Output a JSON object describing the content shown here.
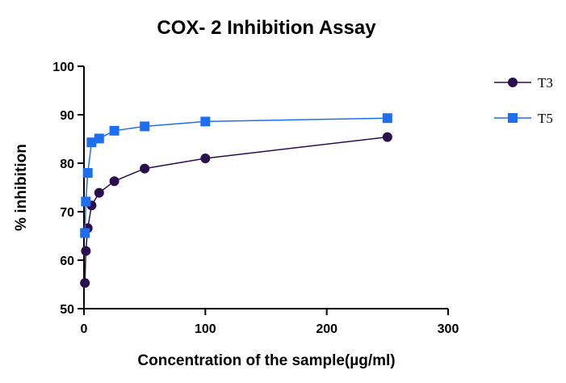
{
  "chart_data": {
    "type": "line",
    "title": "COX- 2 Inhibition Assay",
    "xlabel": "Concentration of the sample(µg/ml)",
    "ylabel": "% inhibition",
    "xlim": [
      0,
      300
    ],
    "ylim": [
      50,
      100
    ],
    "xticks": [
      0,
      100,
      200,
      300
    ],
    "yticks": [
      50,
      60,
      70,
      80,
      90,
      100
    ],
    "grid": false,
    "legend_position": "top-right",
    "series": [
      {
        "name": "T3",
        "marker": "circle",
        "color": "#2a0f4e",
        "x": [
          0.78,
          1.56,
          3.125,
          6.25,
          12.5,
          25,
          50,
          100,
          250
        ],
        "y": [
          55.3,
          61.9,
          66.6,
          71.3,
          73.9,
          76.3,
          78.9,
          81.0,
          85.4
        ]
      },
      {
        "name": "T5",
        "marker": "square",
        "color": "#1e6ff0",
        "x": [
          0.78,
          1.56,
          3.125,
          6.25,
          12.5,
          25,
          50,
          100,
          250
        ],
        "y": [
          65.6,
          72.1,
          78.0,
          84.3,
          85.1,
          86.7,
          87.6,
          88.6,
          89.3
        ]
      }
    ]
  }
}
